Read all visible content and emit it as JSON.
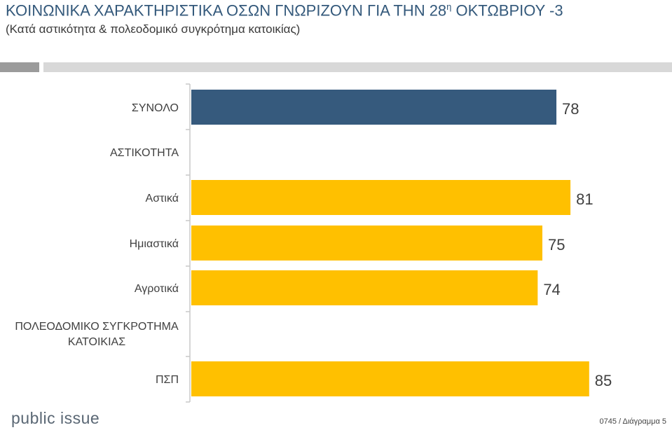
{
  "header": {
    "title_main": "ΚΟΙΝΩΝΙΚΑ ΧΑΡΑΚΤΗΡΙΣΤΙΚΑ ΟΣΩΝ ΓΝΩΡΙΖΟΥΝ ΓΙΑ ΤΗΝ 28",
    "title_sup": "η",
    "title_end": " ΟΚΤΩΒΡΙΟΥ -3",
    "subtitle": "(Κατά αστικότητα & πολεοδομικό συγκρότημα κατοικίας)"
  },
  "chart_data": {
    "type": "bar",
    "orientation": "horizontal",
    "rows": [
      {
        "label": "ΣΥΝΟΛΟ",
        "value": 78,
        "color": "#365a7d"
      },
      {
        "label": "ΑΣΤΙΚΟΤΗΤΑ",
        "value": null,
        "header": true
      },
      {
        "label": "Αστικά",
        "value": 81,
        "color": "#ffc000"
      },
      {
        "label": "Ημιαστικά",
        "value": 75,
        "color": "#ffc000"
      },
      {
        "label": "Αγροτικά",
        "value": 74,
        "color": "#ffc000"
      },
      {
        "label": "ΠΟΛΕΟΔΟΜΙΚΟ ΣΥΓΚΡΟΤΗΜΑ",
        "label2": "ΚΑΤΟΙΚΙΑΣ",
        "value": null,
        "header": true
      },
      {
        "label": "ΠΣΠ",
        "value": 85,
        "color": "#ffc000"
      }
    ],
    "xlim": [
      0,
      100
    ],
    "grid": false,
    "legend": "none"
  },
  "branding": {
    "logo": "public issue"
  },
  "footer": {
    "code": "0745 / Διάγραμμα 5"
  }
}
